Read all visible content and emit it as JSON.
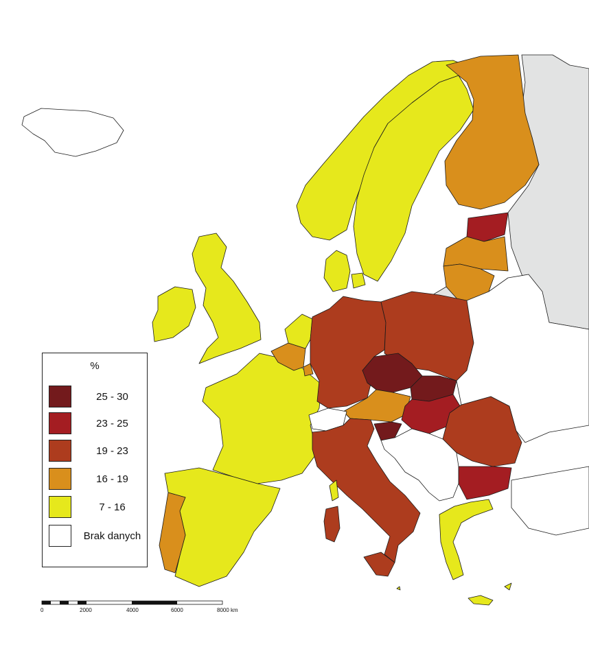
{
  "legend": {
    "title": "%",
    "items": [
      {
        "label": "25 - 30",
        "color": "#731a1c"
      },
      {
        "label": "23 - 25",
        "color": "#a41d22"
      },
      {
        "label": "19 - 23",
        "color": "#ad3c1e"
      },
      {
        "label": "16 - 19",
        "color": "#d98f1c"
      },
      {
        "label": "7 - 16",
        "color": "#e6e81c"
      },
      {
        "label": "Brak danych",
        "color": "#ffffff"
      }
    ]
  },
  "scale": {
    "ticks": [
      "0",
      "2000",
      "4000",
      "6000",
      "8000 km"
    ]
  },
  "colors": {
    "outside_region": "#e2e3e3",
    "border": "#1a1a1a"
  }
}
